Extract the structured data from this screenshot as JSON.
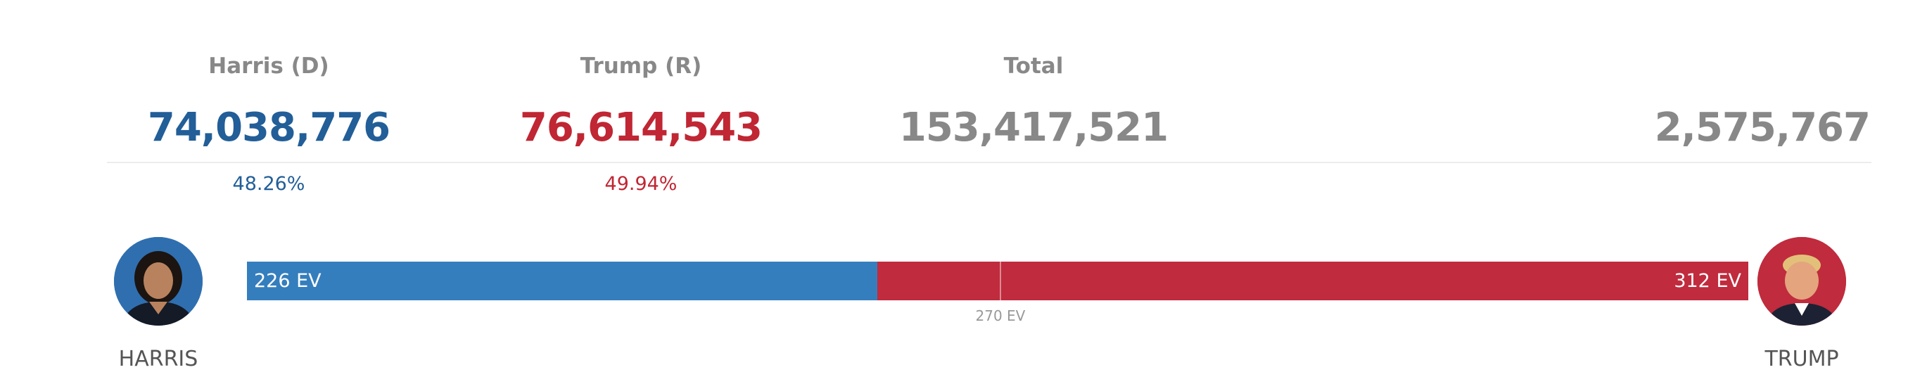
{
  "candidates": {
    "harris": {
      "header": "Harris (D)",
      "votes": "74,038,776",
      "percent": "48.26%",
      "name": "HARRIS",
      "color": "#225e98",
      "bar_color": "#357ebd"
    },
    "trump": {
      "header": "Trump (R)",
      "votes": "76,614,543",
      "percent": "49.94%",
      "name": "TRUMP",
      "color": "#c02633",
      "bar_color": "#c02b3d"
    }
  },
  "total": {
    "header": "Total",
    "votes": "153,417,521"
  },
  "margin": {
    "votes": "2,575,767"
  },
  "chart_data": {
    "type": "bar",
    "orientation": "horizontal-stacked",
    "categories": [
      "Harris",
      "Trump"
    ],
    "values": [
      226,
      312
    ],
    "labels": [
      "226 EV",
      "312 EV"
    ],
    "xlim": [
      0,
      538
    ],
    "threshold": {
      "value": 270,
      "label": "270 EV"
    }
  }
}
